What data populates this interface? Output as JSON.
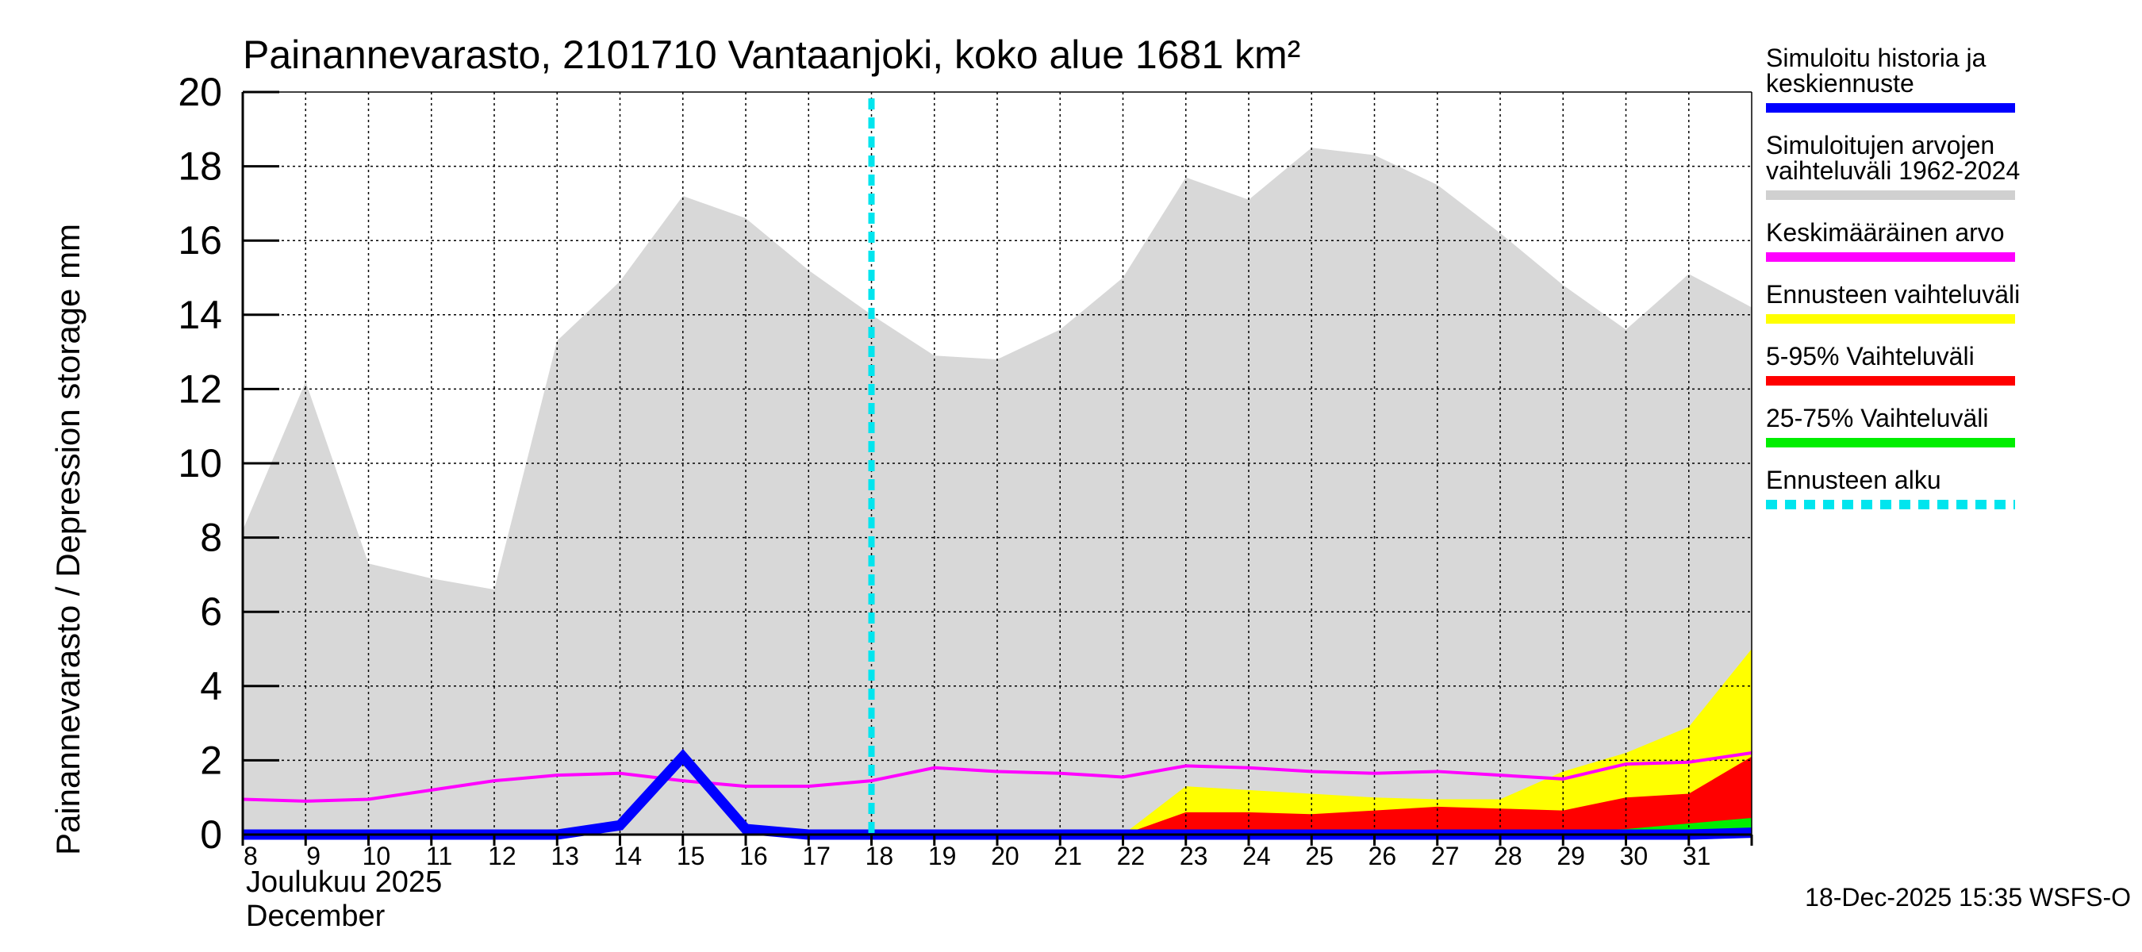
{
  "chart_data": {
    "type": "area",
    "title": "Painannevarasto, 2101710 Vantaanjoki, koko alue 1681 km²",
    "ylabel": "Painannevarasto / Depression storage    mm",
    "ylim": [
      0,
      20
    ],
    "yticks": [
      "0",
      "2",
      "4",
      "6",
      "8",
      "10",
      "12",
      "14",
      "16",
      "18",
      "20"
    ],
    "xlim": [
      7.875,
      31.875
    ],
    "x": [
      8,
      9,
      10,
      11,
      12,
      13,
      14,
      15,
      16,
      17,
      18,
      19,
      20,
      21,
      22,
      23,
      24,
      25,
      26,
      27,
      28,
      29,
      30,
      31
    ],
    "xtick_labels": [
      "8",
      "9",
      "10",
      "11",
      "12",
      "13",
      "14",
      "15",
      "16",
      "17",
      "18",
      "19",
      "20",
      "21",
      "22",
      "23",
      "24",
      "25",
      "26",
      "27",
      "28",
      "29",
      "30",
      "31"
    ],
    "month_label_fi": "Joulukuu  2025",
    "month_label_en": "December",
    "forecast_start_x": 17.875,
    "timestamp": "18-Dec-2025 15:35 WSFS-O",
    "grid": true,
    "series": [
      {
        "name": "Simuloitujen arvojen vaihteluväli 1962-2024",
        "kind": "band",
        "color": "#d8d8d8",
        "x": [
          7.875,
          8.875,
          9.875,
          10.875,
          11.875,
          12.875,
          13.875,
          14.875,
          15.875,
          16.875,
          17.875,
          18.875,
          19.875,
          20.875,
          21.875,
          22.875,
          23.875,
          24.875,
          25.875,
          26.875,
          27.875,
          28.875,
          29.875,
          30.875,
          31.875
        ],
        "low": [
          0,
          0,
          0,
          0,
          0,
          0,
          0,
          0,
          0,
          0,
          0,
          0,
          0,
          0,
          0,
          0,
          0,
          0,
          0,
          0,
          0,
          0,
          0,
          0,
          0
        ],
        "high": [
          8.2,
          12.2,
          7.3,
          6.9,
          6.6,
          13.3,
          14.9,
          17.2,
          16.6,
          15.2,
          14.0,
          12.9,
          12.8,
          13.6,
          15.0,
          17.7,
          17.1,
          18.5,
          18.3,
          17.5,
          16.2,
          14.8,
          13.6,
          15.1,
          14.2
        ]
      },
      {
        "name": "Ennusteen vaihteluväli",
        "kind": "band",
        "color": "#ffff00",
        "x": [
          21.875,
          22.875,
          23.875,
          24.875,
          25.875,
          26.875,
          27.875,
          28.875,
          29.875,
          30.875,
          31.875
        ],
        "low": [
          0,
          0,
          0,
          0,
          0,
          0,
          0,
          0,
          0,
          0,
          0
        ],
        "high": [
          0,
          1.3,
          1.2,
          1.1,
          1.0,
          0.95,
          0.95,
          1.7,
          2.2,
          2.9,
          5.0
        ]
      },
      {
        "name": "5-95% Vaihteluväli",
        "kind": "band",
        "color": "#ff0000",
        "x": [
          21.875,
          22.875,
          23.875,
          24.875,
          25.875,
          26.875,
          27.875,
          28.875,
          29.875,
          30.875,
          31.875
        ],
        "low": [
          0,
          0,
          0,
          0,
          0,
          0,
          0,
          0,
          0,
          0,
          0
        ],
        "high": [
          0,
          0.6,
          0.6,
          0.55,
          0.65,
          0.75,
          0.7,
          0.65,
          1.0,
          1.1,
          2.1
        ]
      },
      {
        "name": "25-75% Vaihteluväli",
        "kind": "band",
        "color": "#00ee00",
        "x": [
          21.875,
          22.875,
          23.875,
          24.875,
          25.875,
          26.875,
          27.875,
          28.875,
          29.875,
          30.875,
          31.875
        ],
        "low": [
          0,
          0,
          0,
          0,
          0,
          0,
          0,
          0,
          0,
          0,
          0
        ],
        "high": [
          0,
          0.05,
          0.05,
          0.05,
          0.05,
          0.05,
          0.05,
          0.08,
          0.15,
          0.3,
          0.45
        ]
      },
      {
        "name": "Keskimääräinen arvo",
        "kind": "line",
        "color": "#ff00ff",
        "x": [
          7.875,
          8.875,
          9.875,
          10.875,
          11.875,
          12.875,
          13.875,
          14.875,
          15.875,
          16.875,
          17.875,
          18.875,
          19.875,
          20.875,
          21.875,
          22.875,
          23.875,
          24.875,
          25.875,
          26.875,
          27.875,
          28.875,
          29.875,
          30.875,
          31.875
        ],
        "values": [
          0.95,
          0.9,
          0.95,
          1.2,
          1.45,
          1.6,
          1.65,
          1.45,
          1.3,
          1.3,
          1.45,
          1.8,
          1.7,
          1.65,
          1.55,
          1.85,
          1.8,
          1.7,
          1.65,
          1.7,
          1.6,
          1.5,
          1.9,
          1.95,
          2.2
        ]
      },
      {
        "name": "Simuloitu historia ja keskiennuste",
        "kind": "line",
        "color": "#0000ff",
        "x": [
          7.875,
          8.875,
          9.875,
          10.875,
          11.875,
          12.875,
          13.875,
          14.875,
          15.875,
          16.875,
          17.875,
          18.875,
          19.875,
          20.875,
          21.875,
          22.875,
          23.875,
          24.875,
          25.875,
          26.875,
          27.875,
          28.875,
          29.875,
          30.875,
          31.875
        ],
        "values": [
          0,
          0,
          0,
          0,
          0,
          0,
          0.25,
          2.1,
          0.15,
          0,
          0,
          0,
          0,
          0,
          0,
          0,
          0,
          0,
          0,
          0,
          0,
          0,
          0,
          0,
          0.05
        ]
      }
    ]
  },
  "legend": {
    "items": [
      {
        "line1": "Simuloitu historia ja",
        "line2": "keskiennuste",
        "color": "#0000ff",
        "style": "solid"
      },
      {
        "line1": "Simuloitujen arvojen",
        "line2": "vaihteluväli 1962-2024",
        "color": "#d0d0d0",
        "style": "solid"
      },
      {
        "line1": "Keskimääräinen arvo",
        "line2": "",
        "color": "#ff00ff",
        "style": "solid"
      },
      {
        "line1": "Ennusteen vaihteluväli",
        "line2": "",
        "color": "#ffff00",
        "style": "solid"
      },
      {
        "line1": "5-95% Vaihteluväli",
        "line2": "",
        "color": "#ff0000",
        "style": "solid"
      },
      {
        "line1": "25-75% Vaihteluväli",
        "line2": "",
        "color": "#00ee00",
        "style": "solid"
      },
      {
        "line1": "Ennusteen alku",
        "line2": "",
        "color": "#00e5ee",
        "style": "dashed"
      }
    ]
  }
}
